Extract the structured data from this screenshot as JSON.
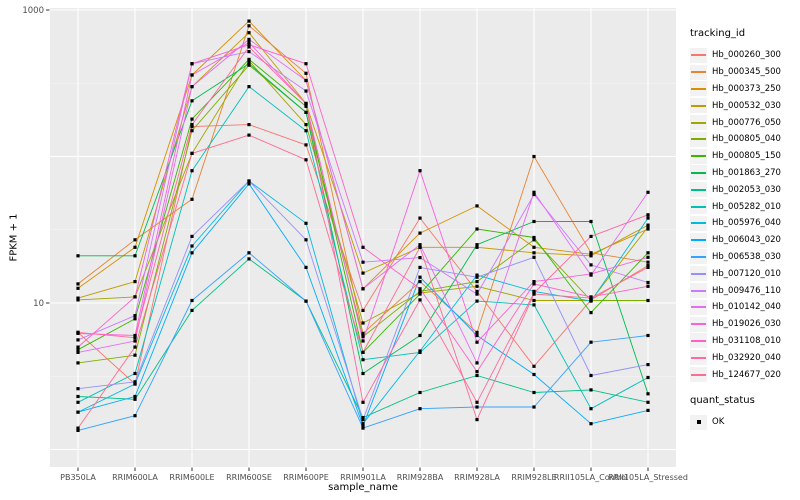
{
  "chart_data": {
    "type": "line",
    "title": "",
    "xlabel": "sample_name",
    "ylabel": "FPKM + 1",
    "y_scale": "log10",
    "y_ticks": [
      1000,
      10
    ],
    "y_major_gridlines": [
      1,
      10,
      100,
      1000
    ],
    "y_minor_gridlines": [
      3.162,
      31.62,
      316.2
    ],
    "ylim": [
      0.76,
      1170
    ],
    "grid": "white major and minor gridlines on grey panel",
    "legend_position": "right",
    "panel_color": "#EBEBEB",
    "point_color": "#000000",
    "categories": [
      "PB350LA",
      "RRIM600LA",
      "RRIM600LE",
      "RRIM600SE",
      "RRIM600PE",
      "RRIM901LA",
      "RRIM928BA",
      "RRIM928LA",
      "RRIM928LE",
      "RRII105LA_Control",
      "RRII105LA_Stressed"
    ],
    "series": [
      {
        "name": "Hb_000260_300",
        "color": "#F8766D",
        "values": [
          6.3,
          2.8,
          160,
          165,
          120,
          8.9,
          38,
          12,
          3.7,
          10.5,
          18
        ]
      },
      {
        "name": "Hb_000345_500",
        "color": "#EA8331",
        "values": [
          13.5,
          27,
          51,
          780,
          370,
          6.2,
          14,
          6.3,
          100,
          22,
          19
        ]
      },
      {
        "name": "Hb_000373_250",
        "color": "#D89000",
        "values": [
          12.6,
          24,
          360,
          840,
          330,
          12.5,
          30,
          46,
          24,
          21.5,
          32
        ]
      },
      {
        "name": "Hb_000532_030",
        "color": "#C09B00",
        "values": [
          10.8,
          14,
          300,
          700,
          230,
          16,
          24,
          24,
          22,
          21,
          34
        ]
      },
      {
        "name": "Hb_000776_050",
        "color": "#A3A500",
        "values": [
          10.5,
          11,
          105,
          450,
          165,
          7.3,
          11.7,
          13,
          10.4,
          10.4,
          33
        ]
      },
      {
        "name": "Hb_000805_040",
        "color": "#7CAE00",
        "values": [
          3.9,
          4.4,
          150,
          420,
          200,
          5.9,
          12,
          14,
          27,
          10.4,
          10.4
        ]
      },
      {
        "name": "Hb_000805_150",
        "color": "#39B600",
        "values": [
          4.8,
          7.8,
          180,
          460,
          220,
          4.6,
          11.5,
          32,
          28,
          8.6,
          22
        ]
      },
      {
        "name": "Hb_001863_270",
        "color": "#00BB4E",
        "values": [
          21,
          21,
          240,
          430,
          200,
          3.3,
          6.0,
          25,
          36,
          36,
          2.4
        ]
      },
      {
        "name": "Hb_002053_030",
        "color": "#00C087",
        "values": [
          2.3,
          2.2,
          8.9,
          20,
          10.3,
          1.65,
          2.45,
          3.2,
          2.45,
          2.55,
          2.1
        ]
      },
      {
        "name": "Hb_005282_010",
        "color": "#00C0B8",
        "values": [
          2.1,
          3.3,
          80,
          300,
          150,
          4.1,
          4.6,
          10.3,
          9.7,
          1.9,
          3.1
        ]
      },
      {
        "name": "Hb_005976_040",
        "color": "#00BAE0",
        "values": [
          1.8,
          2.8,
          24.5,
          68,
          35,
          1.5,
          4.7,
          15.5,
          12,
          10.3,
          38
        ]
      },
      {
        "name": "Hb_006043_020",
        "color": "#00ACFC",
        "values": [
          1.8,
          2.3,
          22,
          65,
          17.5,
          1.45,
          15,
          6.0,
          3.25,
          1.5,
          1.85
        ]
      },
      {
        "name": "Hb_006538_030",
        "color": "#35A2FF",
        "values": [
          1.35,
          1.7,
          10.4,
          22,
          10.3,
          1.4,
          1.9,
          1.95,
          1.95,
          5.4,
          6.0
        ]
      },
      {
        "name": "Hb_007120_010",
        "color": "#9590FF",
        "values": [
          2.6,
          2.9,
          28.5,
          68,
          27,
          1.6,
          17.5,
          15,
          20.5,
          3.2,
          3.8
        ]
      },
      {
        "name": "Hb_009476_110",
        "color": "#C77CFF",
        "values": [
          5.6,
          8.2,
          430,
          520,
          280,
          19,
          20.4,
          11.5,
          55,
          18.2,
          13.8
        ]
      },
      {
        "name": "Hb_010142_040",
        "color": "#E76BF3",
        "values": [
          4.6,
          5.5,
          300,
          630,
          330,
          12.5,
          25,
          3.9,
          57,
          15.5,
          57
        ]
      },
      {
        "name": "Hb_019026_030",
        "color": "#FA62DB",
        "values": [
          6.2,
          6.0,
          360,
          600,
          230,
          5.5,
          80,
          5.4,
          14,
          15.8,
          20.5
        ]
      },
      {
        "name": "Hb_031108_010",
        "color": "#FF61C9",
        "values": [
          5.0,
          11,
          430,
          580,
          430,
          24,
          12.5,
          3.4,
          13.5,
          11,
          13
        ]
      },
      {
        "name": "Hb_032920_040",
        "color": "#FF68A1",
        "values": [
          6.3,
          5.8,
          165,
          560,
          230,
          2.1,
          10.5,
          2.1,
          11.7,
          28.5,
          40
        ]
      },
      {
        "name": "Hb_124677_020",
        "color": "#FF6C91",
        "values": [
          1.4,
          5.0,
          105,
          140,
          95,
          4.6,
          24,
          1.6,
          11.5,
          10.8,
          17.5
        ]
      }
    ]
  },
  "legend": {
    "tracking_title": "tracking_id",
    "quant_title": "quant_status",
    "quant_ok_label": "OK"
  }
}
